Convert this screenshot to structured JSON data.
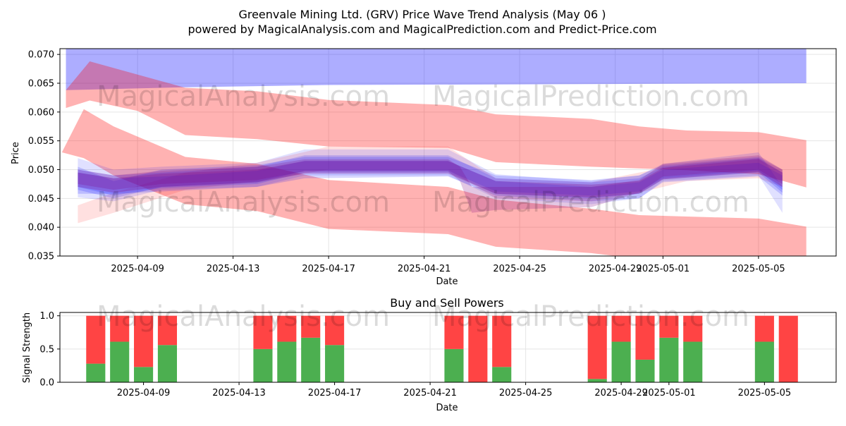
{
  "title": "Greenvale Mining Ltd. (GRV) Price Wave Trend Analysis (May 06 )",
  "subtitle": "powered by MagicalAnalysis.com and MagicalPrediction.com and Predict-Price.com",
  "watermarks": [
    "MagicalAnalysis.com",
    "MagicalPrediction.com"
  ],
  "colors": {
    "red_band": "#ff0000",
    "blue_band": "#0000ff",
    "purple_band": "#800080",
    "buy": "#4caf50",
    "sell": "#ff4444",
    "grid": "#e5e5e5"
  },
  "chart_data": [
    {
      "type": "area",
      "xlabel": "Date",
      "ylabel": "Price",
      "ylim": [
        0.035,
        0.071
      ],
      "yticks": [
        0.035,
        0.04,
        0.045,
        0.05,
        0.055,
        0.06,
        0.065,
        0.07
      ],
      "ytick_labels": [
        "0.035",
        "0.040",
        "0.045",
        "0.050",
        "0.055",
        "0.060",
        "0.065",
        "0.070"
      ],
      "xlim": [
        "2025-04-05T18:00",
        "2025-05-08T06:00"
      ],
      "xticks": [
        "2025-04-09",
        "2025-04-13",
        "2025-04-17",
        "2025-04-21",
        "2025-04-25",
        "2025-04-29",
        "2025-05-01",
        "2025-05-05"
      ],
      "xtick_labels": [
        "2025-04-09",
        "2025-04-13",
        "2025-04-17",
        "2025-04-21",
        "2025-04-25",
        "2025-04-29",
        "2025-05-01",
        "2025-05-05"
      ],
      "grid": true,
      "bands": [
        {
          "color": "blue",
          "opacity": 0.32,
          "points": [
            [
              "2025-04-06",
              0.0638,
              0.0715
            ],
            [
              "2025-04-11",
              0.0643,
              0.0715
            ],
            [
              "2025-04-17",
              0.0647,
              0.0715
            ],
            [
              "2025-04-25",
              0.0648,
              0.0715
            ],
            [
              "2025-05-07",
              0.065,
              0.0715
            ]
          ]
        },
        {
          "color": "red",
          "opacity": 0.3,
          "points": [
            [
              "2025-04-06",
              0.0607,
              0.0638
            ],
            [
              "2025-04-07",
              0.062,
              0.0688
            ],
            [
              "2025-04-09",
              0.0602,
              0.0665
            ],
            [
              "2025-04-11",
              0.056,
              0.0642
            ],
            [
              "2025-04-14",
              0.0553,
              0.0636
            ],
            [
              "2025-04-17",
              0.054,
              0.0621
            ],
            [
              "2025-04-22",
              0.0538,
              0.0612
            ],
            [
              "2025-04-24",
              0.0513,
              0.0596
            ],
            [
              "2025-04-28",
              0.0505,
              0.0588
            ],
            [
              "2025-04-30",
              0.0502,
              0.0575
            ],
            [
              "2025-05-02",
              0.0499,
              0.0568
            ],
            [
              "2025-05-05",
              0.0492,
              0.0565
            ],
            [
              "2025-05-07",
              0.0469,
              0.0551
            ]
          ]
        },
        {
          "color": "red",
          "opacity": 0.3,
          "points": [
            [
              "2025-04-05T20:00",
              0.053,
              0.053
            ],
            [
              "2025-04-06T18:00",
              0.052,
              0.0605
            ],
            [
              "2025-04-08",
              0.049,
              0.0575
            ],
            [
              "2025-04-11",
              0.044,
              0.0522
            ],
            [
              "2025-04-14",
              0.0428,
              0.051
            ],
            [
              "2025-04-17",
              0.0397,
              0.0482
            ],
            [
              "2025-04-22",
              0.0388,
              0.047
            ],
            [
              "2025-04-24",
              0.0366,
              0.0448
            ],
            [
              "2025-04-28",
              0.0355,
              0.0432
            ],
            [
              "2025-04-30",
              0.0345,
              0.0421
            ],
            [
              "2025-05-05",
              0.034,
              0.0415
            ],
            [
              "2025-05-07",
              0.033,
              0.0401
            ]
          ]
        },
        {
          "color": "red",
          "opacity": 0.12,
          "points": [
            [
              "2025-04-06T12:00",
              0.0407,
              0.0438
            ],
            [
              "2025-04-08",
              0.0425,
              0.046
            ],
            [
              "2025-04-11",
              0.0465,
              0.0495
            ],
            [
              "2025-04-14",
              0.048,
              0.0512
            ],
            [
              "2025-04-17",
              0.05,
              0.054
            ],
            [
              "2025-04-22",
              0.05,
              0.054
            ],
            [
              "2025-04-24",
              0.045,
              0.0485
            ],
            [
              "2025-04-28",
              0.0445,
              0.0478
            ],
            [
              "2025-04-30",
              0.046,
              0.0495
            ],
            [
              "2025-05-02",
              0.048,
              0.051
            ],
            [
              "2025-05-05",
              0.0485,
              0.052
            ],
            [
              "2025-05-06",
              0.047,
              0.05
            ]
          ]
        },
        {
          "color": "blue",
          "opacity": 0.12,
          "points": [
            [
              "2025-04-06T12:00",
              0.0452,
              0.052
            ],
            [
              "2025-04-08",
              0.0445,
              0.05
            ],
            [
              "2025-04-10",
              0.0465,
              0.0505
            ],
            [
              "2025-04-14",
              0.047,
              0.0512
            ],
            [
              "2025-04-16",
              0.049,
              0.0535
            ],
            [
              "2025-04-22",
              0.049,
              0.0535
            ],
            [
              "2025-04-24",
              0.045,
              0.0492
            ],
            [
              "2025-04-28",
              0.044,
              0.048
            ],
            [
              "2025-04-30",
              0.045,
              0.049
            ],
            [
              "2025-05-01",
              0.048,
              0.051
            ],
            [
              "2025-05-05",
              0.049,
              0.053
            ],
            [
              "2025-05-06",
              0.0425,
              0.047
            ]
          ]
        },
        {
          "color": "blue",
          "opacity": 0.16,
          "points": [
            [
              "2025-04-06T12:00",
              0.047,
              0.05
            ],
            [
              "2025-04-08",
              0.0455,
              0.049
            ],
            [
              "2025-04-10",
              0.0468,
              0.0495
            ],
            [
              "2025-04-14",
              0.0475,
              0.0505
            ],
            [
              "2025-04-16",
              0.0495,
              0.0525
            ],
            [
              "2025-04-22",
              0.0495,
              0.0525
            ],
            [
              "2025-04-24",
              0.0458,
              0.0485
            ],
            [
              "2025-04-28",
              0.045,
              0.0478
            ],
            [
              "2025-04-30",
              0.0458,
              0.0485
            ],
            [
              "2025-05-01",
              0.0483,
              0.0505
            ],
            [
              "2025-05-05",
              0.0495,
              0.052
            ],
            [
              "2025-05-06",
              0.046,
              0.0495
            ]
          ]
        },
        {
          "color": "blue",
          "opacity": 0.16,
          "points": [
            [
              "2025-04-06T12:00",
              0.0458,
              0.0495
            ],
            [
              "2025-04-08",
              0.0458,
              0.0485
            ],
            [
              "2025-04-10",
              0.0462,
              0.0488
            ],
            [
              "2025-04-14",
              0.047,
              0.0498
            ],
            [
              "2025-04-16",
              0.0485,
              0.0515
            ],
            [
              "2025-04-22",
              0.0488,
              0.0515
            ],
            [
              "2025-04-24",
              0.0455,
              0.048
            ],
            [
              "2025-04-28",
              0.0445,
              0.047
            ],
            [
              "2025-04-30",
              0.045,
              0.0478
            ],
            [
              "2025-05-01",
              0.0478,
              0.05
            ],
            [
              "2025-05-05",
              0.0488,
              0.0512
            ],
            [
              "2025-05-06",
              0.0455,
              0.049
            ]
          ]
        },
        {
          "color": "blue",
          "opacity": 0.16,
          "points": [
            [
              "2025-04-06T12:00",
              0.0465,
              0.0505
            ],
            [
              "2025-04-08",
              0.045,
              0.048
            ],
            [
              "2025-04-10",
              0.047,
              0.05
            ],
            [
              "2025-04-14",
              0.0478,
              0.0508
            ],
            [
              "2025-04-16",
              0.0498,
              0.0522
            ],
            [
              "2025-04-22",
              0.0498,
              0.0522
            ],
            [
              "2025-04-24",
              0.0462,
              0.049
            ],
            [
              "2025-04-28",
              0.0455,
              0.0482
            ],
            [
              "2025-04-30",
              0.0462,
              0.049
            ],
            [
              "2025-05-01",
              0.0485,
              0.0508
            ],
            [
              "2025-05-05",
              0.0498,
              0.0522
            ],
            [
              "2025-05-06",
              0.0465,
              0.05
            ]
          ]
        },
        {
          "color": "purple",
          "opacity": 0.26,
          "points": [
            [
              "2025-04-06T12:00",
              0.047,
              0.0495
            ],
            [
              "2025-04-08",
              0.046,
              0.0485
            ],
            [
              "2025-04-10",
              0.047,
              0.0493
            ],
            [
              "2025-04-14",
              0.0478,
              0.05
            ],
            [
              "2025-04-16",
              0.0493,
              0.0515
            ],
            [
              "2025-04-22",
              0.0493,
              0.0515
            ],
            [
              "2025-04-24",
              0.0458,
              0.048
            ],
            [
              "2025-04-28",
              0.0452,
              0.0474
            ],
            [
              "2025-04-30",
              0.0458,
              0.048
            ],
            [
              "2025-05-01",
              0.0483,
              0.0503
            ],
            [
              "2025-05-05",
              0.0496,
              0.0518
            ],
            [
              "2025-05-06",
              0.047,
              0.0495
            ]
          ]
        },
        {
          "color": "purple",
          "opacity": 0.22,
          "points": [
            [
              "2025-04-06T12:00",
              0.0475,
              0.05
            ],
            [
              "2025-04-08",
              0.0465,
              0.049
            ],
            [
              "2025-04-10",
              0.0475,
              0.0498
            ],
            [
              "2025-04-14",
              0.0482,
              0.0505
            ],
            [
              "2025-04-16",
              0.0497,
              0.0518
            ],
            [
              "2025-04-22",
              0.0497,
              0.0518
            ],
            [
              "2025-04-22T12:00",
              0.048,
              0.0505
            ],
            [
              "2025-04-23",
              0.0425,
              0.047
            ],
            [
              "2025-04-24",
              0.043,
              0.047
            ],
            [
              "2025-04-28",
              0.0435,
              0.047
            ],
            [
              "2025-04-30",
              0.046,
              0.0482
            ],
            [
              "2025-05-01",
              0.0488,
              0.051
            ],
            [
              "2025-05-05",
              0.05,
              0.0525
            ],
            [
              "2025-05-06",
              0.0475,
              0.05
            ]
          ]
        }
      ]
    },
    {
      "type": "bar",
      "title": "Buy and Sell Powers",
      "xlabel": "Date",
      "ylabel": "Signal Strength",
      "ylim": [
        0,
        1.05
      ],
      "yticks": [
        0.0,
        0.5,
        1.0
      ],
      "ytick_labels": [
        "0.0",
        "0.5",
        "1.0"
      ],
      "xlim": [
        "2025-04-05T12:00",
        "2025-05-08T00:00"
      ],
      "xticks": [
        "2025-04-09",
        "2025-04-13",
        "2025-04-17",
        "2025-04-21",
        "2025-04-25",
        "2025-04-29",
        "2025-05-01",
        "2025-05-05"
      ],
      "xtick_labels": [
        "2025-04-09",
        "2025-04-13",
        "2025-04-17",
        "2025-04-21",
        "2025-04-25",
        "2025-04-29",
        "2025-05-01",
        "2025-05-05"
      ],
      "grid": true,
      "x": [
        "2025-04-07",
        "2025-04-08",
        "2025-04-09",
        "2025-04-10",
        "2025-04-14",
        "2025-04-15",
        "2025-04-16",
        "2025-04-17",
        "2025-04-22",
        "2025-04-23",
        "2025-04-24",
        "2025-04-28",
        "2025-04-29",
        "2025-04-30",
        "2025-05-01",
        "2025-05-02",
        "2025-05-05",
        "2025-05-06"
      ],
      "series": [
        {
          "name": "buy",
          "values": [
            0.28,
            0.61,
            0.23,
            0.56,
            0.5,
            0.61,
            0.67,
            0.56,
            0.5,
            0.0,
            0.23,
            0.05,
            0.61,
            0.34,
            0.67,
            0.61,
            0.61,
            0.0
          ]
        },
        {
          "name": "sell",
          "values": [
            0.72,
            0.39,
            0.77,
            0.44,
            0.5,
            0.39,
            0.33,
            0.44,
            0.5,
            1.0,
            0.77,
            0.95,
            0.39,
            0.66,
            0.33,
            0.39,
            0.39,
            1.0
          ]
        }
      ]
    }
  ]
}
